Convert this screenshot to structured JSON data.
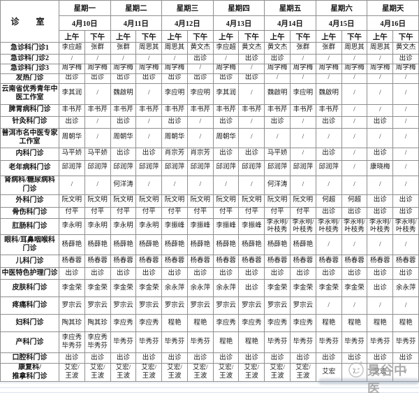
{
  "table": {
    "corner_label": "诊　室",
    "session_labels": [
      "上午",
      "下午"
    ],
    "days": [
      {
        "name": "星期一",
        "date": "4月10日"
      },
      {
        "name": "星期二",
        "date": "4月11日"
      },
      {
        "name": "星期三",
        "date": "4月12日"
      },
      {
        "name": "星期四",
        "date": "4月13日"
      },
      {
        "name": "星期五",
        "date": "4月14日"
      },
      {
        "name": "星期六",
        "date": "4月15日"
      },
      {
        "name": "星期天",
        "date": "4月16日"
      }
    ],
    "rows": [
      {
        "dept": "急诊科门诊1",
        "cells": [
          "李应超",
          "张群",
          "张群",
          "周思其",
          "周思其",
          "黄文杰",
          "李应超",
          "黄文杰",
          "黄文杰",
          "张群",
          "张群",
          "周思其",
          "周思其",
          "黄文杰"
        ]
      },
      {
        "dept": "急诊科门诊2",
        "cells": [
          "/",
          "/",
          "/",
          "/",
          "/",
          "出诊",
          "/",
          "出诊",
          "出诊",
          "/",
          "/",
          "/",
          "/",
          "出诊"
        ]
      },
      {
        "dept": "急诊科门诊3",
        "cells": [
          "周学梅",
          "周学梅",
          "周学梅",
          "周学梅",
          "周学梅",
          "/",
          "周学梅",
          "/",
          "周学梅",
          "周学梅",
          "周学梅",
          "周学梅",
          "周学梅",
          "周学梅"
        ]
      },
      {
        "dept": "发热门诊",
        "cells": [
          "出诊",
          "出诊",
          "出诊",
          "出诊",
          "出诊",
          "出诊",
          "出诊",
          "出诊",
          "/",
          "/",
          "/",
          "/",
          "/",
          "/"
        ]
      },
      {
        "dept": "云南省优秀青年中\n医工作室",
        "cells": [
          "李其润",
          "/",
          "魏啟明",
          "/",
          "李应明",
          "李应明",
          "李其润",
          "/",
          "魏啟明",
          "李应明",
          "魏啟明",
          "/",
          "/",
          "/"
        ]
      },
      {
        "dept": "脾胃病科门诊",
        "cells": [
          "丰书芹",
          "丰书芹",
          "丰书芹",
          "丰书芹",
          "丰书芹",
          "丰书芹",
          "丰书芹",
          "丰书芹",
          "丰书芹",
          "丰书芹",
          "丰书芹",
          "/",
          "/",
          "/"
        ]
      },
      {
        "dept": "针灸科门诊",
        "cells": [
          "出诊",
          "/",
          "出诊",
          "/",
          "出诊",
          "/",
          "出诊",
          "/",
          "出诊",
          "/",
          "出诊",
          "/",
          "出诊",
          "/"
        ]
      },
      {
        "dept": "普洱市名中医专家\n工作室",
        "cells": [
          "周朝华",
          "/",
          "周朝华",
          "/",
          "周朝华",
          "/",
          "周朝华",
          "/",
          "/",
          "/",
          "/",
          "/",
          "/",
          "/"
        ]
      },
      {
        "dept": "内科门诊",
        "cells": [
          "马平娇",
          "马平娇",
          "出诊",
          "出诊",
          "肖宗芳",
          "肖宗芳",
          "出诊",
          "出诊",
          "马平娇",
          "/",
          "出诊",
          "/",
          "出诊",
          "/"
        ]
      },
      {
        "dept": "老年病科门诊",
        "cells": [
          "邱润萍",
          "邱润萍",
          "邱润萍",
          "邱润萍",
          "邱润萍",
          "邱润萍",
          "邱润萍",
          "邱润萍",
          "邱润萍",
          "邱润萍",
          "邱润萍",
          "/",
          "康晓梅",
          "/"
        ]
      },
      {
        "dept": "肾病科/糖尿病科\n门诊",
        "cells": [
          "/",
          "/",
          "何洋涛",
          "/",
          "/",
          "/",
          "/",
          "/",
          "何洋涛",
          "/",
          "/",
          "/",
          "/",
          "/"
        ]
      },
      {
        "dept": "外科门诊",
        "cells": [
          "阮文明",
          "阮文明",
          "阮文明",
          "阮文明",
          "阮文明",
          "阮文明",
          "阮文明",
          "阮文明",
          "阮文明",
          "阮文明",
          "何超",
          "何超",
          "出诊",
          "出诊"
        ]
      },
      {
        "dept": "骨伤科门诊",
        "cells": [
          "付平",
          "付平",
          "付平",
          "付平",
          "付平",
          "付平",
          "付平",
          "付平",
          "付平",
          "付平",
          "出诊",
          "出诊",
          "出诊",
          "出诊"
        ]
      },
      {
        "dept": "肛肠科门诊",
        "cells": [
          "李永明",
          "李永明",
          "李永明",
          "李永明",
          "李振峰",
          "李振峰",
          "李振峰",
          "李振峰",
          "李永明/\n叶枝秀",
          "李永明/\n叶枝秀",
          "李永明/\n叶枝秀",
          "李永明/\n叶枝秀",
          "李永明/\n叶枝秀",
          "李永明/\n叶枝秀"
        ]
      },
      {
        "dept": "眼科/耳鼻咽喉科\n门诊",
        "cells": [
          "杨薛艳",
          "杨薛艳",
          "杨薛艳",
          "杨薛艳",
          "杨薛艳",
          "杨薛艳",
          "杨薛艳",
          "杨薛艳",
          "杨薛艳",
          "杨薛艳",
          "/",
          "/",
          "/",
          "/"
        ]
      },
      {
        "dept": "儿科门诊",
        "cells": [
          "杨春蓉",
          "杨春蓉",
          "杨春蓉",
          "杨春蓉",
          "杨春蓉",
          "杨春蓉",
          "杨春蓉",
          "杨春蓉",
          "杨春蓉",
          "杨春蓉",
          "杨春蓉",
          "杨春蓉",
          "杨春蓉",
          "杨春蓉"
        ]
      },
      {
        "dept": "中医特色护理门诊",
        "cells": [
          "出诊",
          "出诊",
          "出诊",
          "出诊",
          "出诊",
          "出诊",
          "出诊",
          "出诊",
          "出诊",
          "出诊",
          "出诊",
          "出诊",
          "出诊",
          "出诊"
        ]
      },
      {
        "dept": "皮肤科门诊",
        "cells": [
          "李金荣",
          "李金荣",
          "李金荣",
          "李金荣",
          "余永萍",
          "余永萍",
          "余永萍",
          "出诊",
          "李金荣",
          "李金荣",
          "李金荣",
          "李金荣",
          "出诊",
          "余永萍"
        ]
      },
      {
        "dept": "疼痛科门诊",
        "cells": [
          "罗宗云",
          "罗宗云",
          "罗宗云",
          "罗宗云",
          "罗宗云",
          "罗宗云",
          "罗宗云",
          "罗宗云",
          "罗宗云",
          "罗宗云",
          "/",
          "/",
          "/",
          "/"
        ]
      },
      {
        "dept": "妇科门诊",
        "cells": [
          "陶其珍",
          "陶其珍",
          "李应秀",
          "李应秀",
          "程艳",
          "程艳",
          "李应秀",
          "李应秀",
          "李应秀",
          "李应秀",
          "程艳",
          "程艳",
          "程艳",
          "程艳"
        ]
      },
      {
        "dept": "产科门诊",
        "cells": [
          "李应秀\n毕秀芬",
          "李应秀\n毕秀芬",
          "毕秀芬",
          "毕秀芬",
          "毕秀芬",
          "毕秀芬",
          "程艳",
          "程艳",
          "毕秀芬",
          "毕秀芬",
          "毕秀芬",
          "毕秀芬",
          "毕秀芬",
          "毕秀芬"
        ]
      },
      {
        "dept": "口腔科门诊",
        "cells": [
          "出诊",
          "出诊",
          "出诊",
          "出诊",
          "出诊",
          "出诊",
          "出诊",
          "出诊",
          "出诊",
          "出诊",
          "出诊",
          "出诊",
          "出诊",
          "出诊"
        ]
      },
      {
        "dept": "康复科/\n推拿科门诊",
        "cells": [
          "艾宏/\n王波",
          "艾宏/\n王波",
          "艾宏/\n王波",
          "艾宏/\n王波",
          "艾宏/\n王波",
          "艾宏/\n王波",
          "艾宏/\n王波",
          "艾宏/\n王波",
          "艾宏/\n王波",
          "艾宏/\n王波",
          "艾宏",
          "/",
          "艾宏",
          "/"
        ]
      }
    ]
  },
  "watermark": {
    "text": "景谷中医"
  }
}
